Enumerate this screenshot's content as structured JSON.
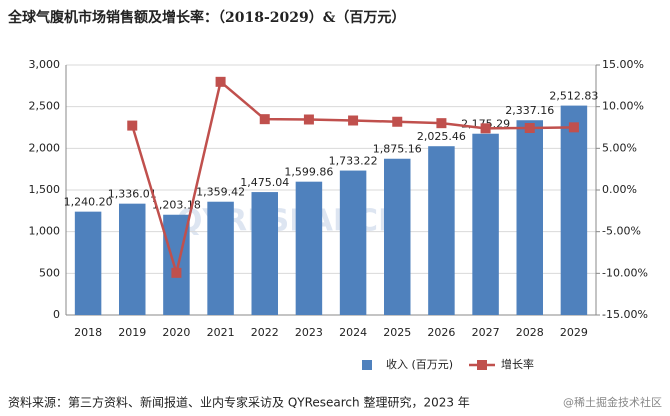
{
  "chart_data": {
    "type": "bar",
    "title": "全球气腹机市场销售额及增长率：（2018-2029）&（百万元）",
    "categories": [
      "2018",
      "2019",
      "2020",
      "2021",
      "2022",
      "2023",
      "2024",
      "2025",
      "2026",
      "2027",
      "2028",
      "2029"
    ],
    "series": [
      {
        "name": "收入 (百万元)",
        "type": "bar",
        "color": "#4f81bd",
        "values": [
          1240.2,
          1336.01,
          1203.18,
          1359.42,
          1475.04,
          1599.86,
          1733.22,
          1875.16,
          2025.46,
          2175.29,
          2337.16,
          2512.83
        ],
        "value_labels": [
          "1,240.20",
          "1,336.01",
          "1,203.18",
          "1,359.42",
          "1,475.04",
          "1,599.86",
          "1,733.22",
          "1,875.16",
          "2,025.46",
          "2,175.29",
          "2,337.16",
          "2,512.83"
        ]
      },
      {
        "name": "增长率",
        "type": "line",
        "color": "#c0504d",
        "axis": "y2",
        "values": [
          null,
          7.73,
          -9.94,
          12.98,
          8.5,
          8.46,
          8.34,
          8.19,
          8.02,
          7.4,
          7.44,
          7.52
        ]
      }
    ],
    "ylim": [
      0,
      3000
    ],
    "yticks": [
      0,
      500,
      {
        "value": 1000,
        "label": "1,000"
      },
      {
        "value": 1500,
        "label": "1,500"
      },
      {
        "value": 2000,
        "label": "2,000"
      },
      {
        "value": 2500,
        "label": "2,500"
      },
      {
        "value": 3000,
        "label": "3,000"
      }
    ],
    "y2lim": [
      -15,
      15
    ],
    "y2ticks": [
      {
        "value": -15,
        "label": "-15.00%"
      },
      {
        "value": -10,
        "label": "-10.00%"
      },
      {
        "value": -5,
        "label": "-5.00%"
      },
      {
        "value": 0,
        "label": "0.00%"
      },
      {
        "value": 5,
        "label": "5.00%"
      },
      {
        "value": 10,
        "label": "10.00%"
      },
      {
        "value": 15,
        "label": "15.00%"
      }
    ],
    "grid": true,
    "legend": "bottom",
    "watermark": "QYRESEARCH",
    "source": "资料来源：第三方资料、新闻报道、业内专家采访及 QYResearch 整理研究，2023 年",
    "credit": "@稀土掘金技术社区"
  }
}
